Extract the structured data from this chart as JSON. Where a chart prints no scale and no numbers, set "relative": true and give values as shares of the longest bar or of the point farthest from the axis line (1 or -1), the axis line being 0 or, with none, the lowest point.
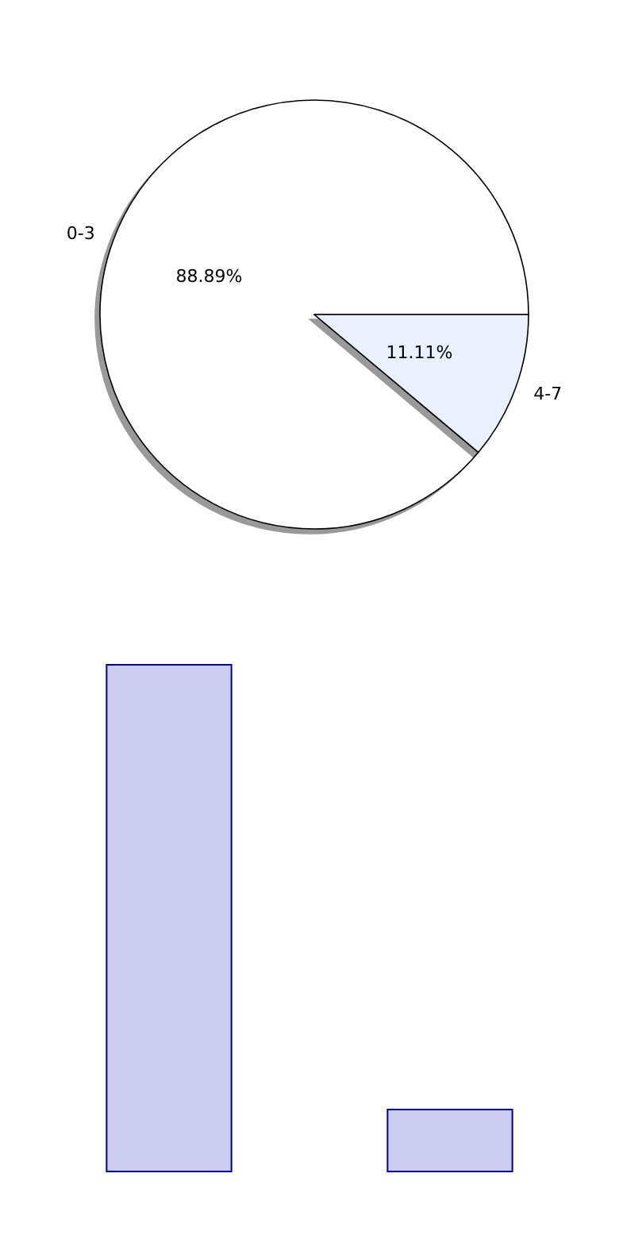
{
  "chart_data": [
    {
      "type": "pie",
      "categories": [
        "0-3",
        "4-7"
      ],
      "values": [
        88.89,
        11.11
      ],
      "colors": [
        "#ffffff",
        "#eaf0fd"
      ],
      "value_labels": [
        "88.89%",
        "11.11%"
      ],
      "legend": false
    },
    {
      "type": "bar",
      "categories": [
        null,
        null
      ],
      "values": [
        1,
        0.125
      ],
      "color": "#ccccee",
      "relative": true,
      "legend": false
    }
  ]
}
